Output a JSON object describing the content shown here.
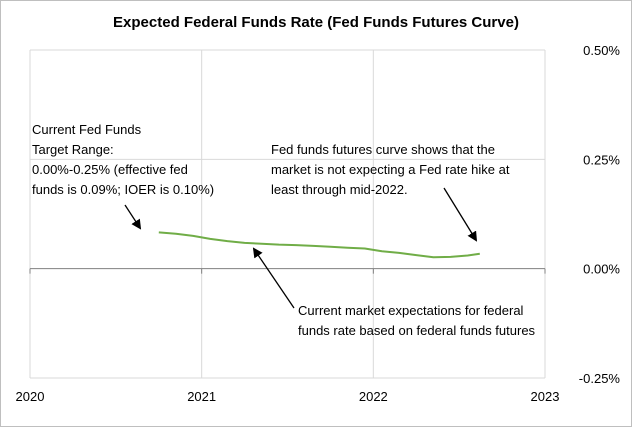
{
  "chart_data": {
    "type": "line",
    "title": "Expected Federal Funds Rate (Fed Funds Futures Curve)",
    "xlabel": "",
    "ylabel": "",
    "x_ticks": [
      "2020",
      "2021",
      "2022",
      "2023"
    ],
    "x_range": [
      2020,
      2023
    ],
    "y_ticks": [
      "0.50%",
      "0.25%",
      "0.00%",
      "-0.25%"
    ],
    "y_tick_values": [
      0.5,
      0.25,
      0.0,
      -0.25
    ],
    "ylim": [
      -0.25,
      0.5
    ],
    "y_axis_side": "right",
    "grid": true,
    "legend": "none",
    "series": [
      {
        "color": "#70ad47",
        "x": [
          2020.75,
          2020.85,
          2020.95,
          2021.05,
          2021.15,
          2021.25,
          2021.35,
          2021.45,
          2021.55,
          2021.65,
          2021.75,
          2021.85,
          2021.95,
          2022.05,
          2022.15,
          2022.25,
          2022.35,
          2022.45,
          2022.55,
          2022.62
        ],
        "y": [
          0.083,
          0.08,
          0.075,
          0.068,
          0.063,
          0.059,
          0.057,
          0.055,
          0.054,
          0.052,
          0.05,
          0.048,
          0.046,
          0.04,
          0.036,
          0.031,
          0.026,
          0.027,
          0.03,
          0.034
        ]
      }
    ],
    "annotations": [
      {
        "lines": [
          "Current Fed Funds",
          "Target Range:",
          "0.00%-0.25% (effective fed",
          "funds is 0.09%; IOER is 0.10%)"
        ]
      },
      {
        "lines": [
          "Fed funds futures curve shows that the",
          "market is not expecting a Fed rate hike at",
          "least through mid-2022."
        ]
      },
      {
        "lines": [
          "Current market expectations for federal",
          "funds rate based on federal funds futures"
        ]
      }
    ]
  }
}
